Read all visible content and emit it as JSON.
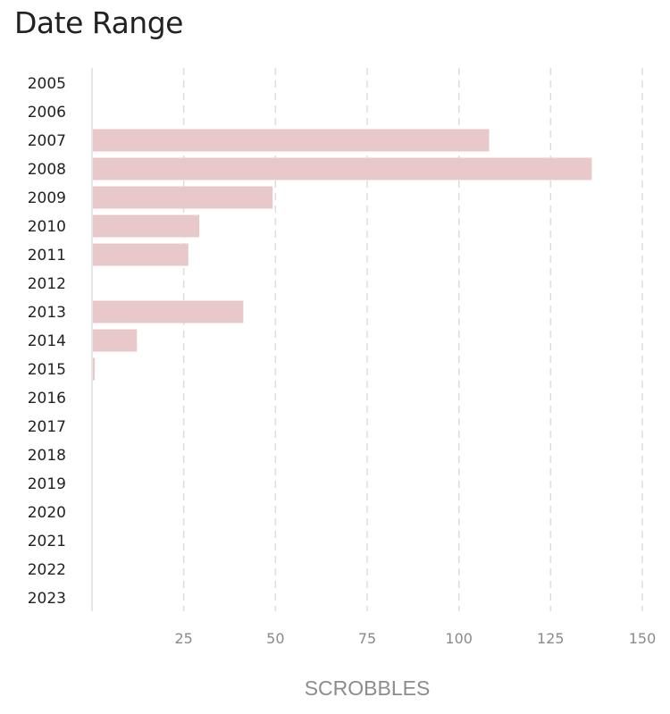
{
  "chart_data": {
    "type": "bar",
    "orientation": "horizontal",
    "title": "Date Range",
    "xlabel": "SCROBBLES",
    "ylabel": "",
    "categories": [
      "2005",
      "2006",
      "2007",
      "2008",
      "2009",
      "2010",
      "2011",
      "2012",
      "2013",
      "2014",
      "2015",
      "2016",
      "2017",
      "2018",
      "2019",
      "2020",
      "2021",
      "2022",
      "2023"
    ],
    "values": [
      0,
      0,
      108,
      136,
      49,
      29,
      26,
      0,
      41,
      12,
      0.5,
      0,
      0,
      0,
      0,
      0,
      0,
      0,
      0
    ],
    "xlim": [
      0,
      150
    ],
    "xticks": [
      25,
      50,
      75,
      100,
      125,
      150
    ],
    "grid": true,
    "bar_color": "#e8c8c8"
  }
}
